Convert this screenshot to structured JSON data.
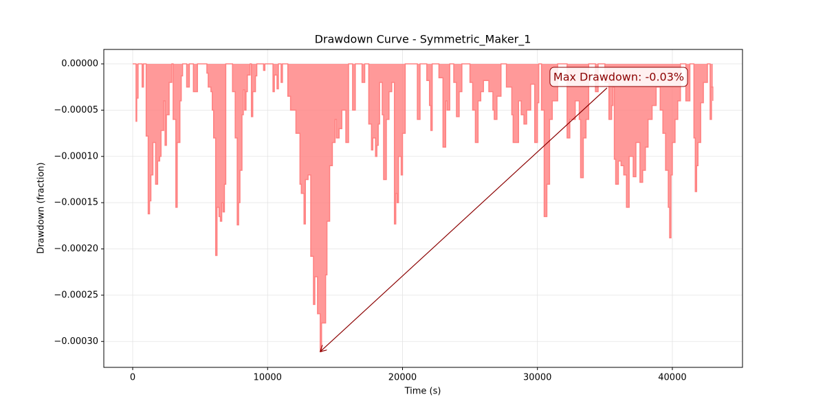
{
  "chart_data": {
    "type": "area",
    "drawstyle": "steps-post",
    "title": "Drawdown Curve - Symmetric_Maker_1",
    "xlabel": "Time (s)",
    "ylabel": "Drawdown (fraction)",
    "color": "#ff8080",
    "x": [
      0,
      250,
      300,
      400,
      700,
      800,
      1000,
      1150,
      1250,
      1350,
      1500,
      1700,
      1850,
      2000,
      2100,
      2300,
      2400,
      2500,
      2700,
      2900,
      3000,
      3200,
      3300,
      3500,
      3600,
      3700,
      4000,
      4200,
      4500,
      4800,
      5500,
      5600,
      5800,
      5900,
      6000,
      6150,
      6250,
      6400,
      6500,
      6600,
      6700,
      6800,
      6900,
      7400,
      7600,
      7750,
      7850,
      7950,
      8100,
      8200,
      8300,
      8400,
      8500,
      8700,
      8800,
      8900,
      9100,
      9200,
      9700,
      9800,
      10400,
      10500,
      10700,
      10800,
      11000,
      11100,
      11500,
      11700,
      12000,
      12100,
      12400,
      12500,
      12700,
      12800,
      13000,
      13200,
      13400,
      13500,
      13700,
      13900,
      14000,
      14200,
      14300,
      14400,
      14600,
      14800,
      15000,
      15100,
      15300,
      15500,
      15800,
      16000,
      16300,
      16500,
      17000,
      17200,
      17500,
      17700,
      17800,
      18000,
      18100,
      18200,
      18300,
      18500,
      18600,
      18800,
      19000,
      19200,
      19400,
      19500,
      19600,
      19700,
      19900,
      20000,
      20200,
      21100,
      21300,
      21800,
      22000,
      22100,
      22200,
      22700,
      23000,
      23200,
      23300,
      23500,
      23800,
      24000,
      24200,
      24400,
      25000,
      25200,
      25400,
      25600,
      25800,
      26000,
      26400,
      26700,
      26800,
      27000,
      27300,
      27700,
      28100,
      28200,
      28600,
      28800,
      29000,
      29200,
      29500,
      29800,
      30000,
      30100,
      30300,
      30500,
      30700,
      30900,
      31100,
      31500,
      32200,
      32400,
      32800,
      33100,
      33200,
      33400,
      33600,
      33800,
      34300,
      34500,
      35000,
      35300,
      35500,
      35600,
      35700,
      35800,
      36000,
      36200,
      36400,
      36600,
      36800,
      37100,
      37300,
      37600,
      37800,
      38000,
      38200,
      38500,
      38800,
      39100,
      39300,
      39500,
      39700,
      39800,
      39900,
      40000,
      40200,
      40400,
      40600,
      41000,
      41300,
      41600,
      41700,
      41800,
      41900,
      42100,
      42300,
      42600,
      42800,
      42900,
      43000
    ],
    "values": [
      0,
      -6.2e-05,
      -3.7e-05,
      0,
      -2.5e-05,
      0,
      -7.8e-05,
      -0.000162,
      -0.000148,
      -0.00012,
      -8.5e-05,
      -0.00013,
      -0.000105,
      -0.0001,
      -7.2e-05,
      -4e-05,
      -8.8e-05,
      -5.5e-05,
      -2e-05,
      0,
      -6e-05,
      -0.000155,
      -8.5e-05,
      -4e-05,
      -1.3e-05,
      0,
      -2.5e-05,
      0,
      -3e-05,
      0,
      -1e-05,
      -2.5e-05,
      -3e-05,
      -5e-05,
      -8e-05,
      -0.000207,
      -0.000155,
      -0.000165,
      -0.00017,
      -0.00015,
      -0.00016,
      -0.00013,
      0,
      -3e-05,
      -8e-05,
      -0.000174,
      -0.00015,
      -0.000115,
      -5.5e-05,
      -2.8e-05,
      -5e-05,
      -3e-05,
      -1.2e-05,
      0,
      -5.7e-05,
      -3e-05,
      -1.3e-05,
      0,
      -7e-06,
      0,
      -3e-05,
      -1.2e-05,
      -2.7e-05,
      0,
      -2e-05,
      0,
      -3.5e-05,
      -5e-05,
      -5e-05,
      -7.5e-05,
      -0.00013,
      -0.00014,
      -0.000173,
      -0.000125,
      -0.00012,
      -0.000208,
      -0.00026,
      -0.00023,
      -0.00027,
      -0.000311,
      -0.00028,
      -0.00028,
      -0.000228,
      -0.00017,
      -0.00011,
      -8.5e-05,
      -6e-05,
      -8e-05,
      -7e-05,
      -5e-05,
      -8.5e-05,
      0,
      -5e-05,
      0,
      -2e-05,
      0,
      -6.5e-05,
      -9.3e-05,
      -8e-05,
      -0.0001,
      -8.8e-05,
      -6.5e-05,
      -2e-05,
      -5.5e-05,
      -0.000125,
      -6e-05,
      -3e-05,
      -2e-05,
      -0.000173,
      -0.00014,
      -0.00015,
      -0.0001,
      -0.00012,
      -7.5e-05,
      0,
      -6e-05,
      0,
      -1.8e-05,
      -4.5e-05,
      -7.2e-05,
      0,
      -1.5e-05,
      -9e-05,
      -4e-05,
      -5e-05,
      0,
      -2e-05,
      -5.7e-05,
      -3e-05,
      0,
      -2e-05,
      -5e-05,
      -8.5e-05,
      -4e-05,
      -3e-05,
      -1.8e-05,
      -3e-05,
      -5e-05,
      -6e-05,
      -3.5e-05,
      0,
      -2.5e-05,
      -5.5e-05,
      -8.5e-05,
      -4e-05,
      -5.5e-05,
      -6.5e-05,
      -5e-05,
      -2.2e-05,
      -8.5e-05,
      -4.2e-05,
      0,
      -5e-05,
      -0.000165,
      -0.00013,
      -6e-05,
      -4e-05,
      0,
      -8e-05,
      -6e-05,
      -4e-05,
      -6e-05,
      -0.000123,
      -8e-05,
      -6e-05,
      0,
      -3e-05,
      0,
      -2e-05,
      -6e-05,
      -4.5e-05,
      -2.5e-05,
      -0.000103,
      -0.00013,
      -0.000105,
      -0.00011,
      -0.00012,
      -0.000155,
      -0.0001,
      -0.000122,
      -8.5e-05,
      -0.000128,
      -0.000115,
      -9e-05,
      -6e-05,
      -4.5e-05,
      -2.5e-05,
      -5e-05,
      -7.5e-05,
      -0.000115,
      -0.000155,
      -0.000188,
      -0.00012,
      -8.5e-05,
      -6e-05,
      -4e-05,
      0,
      -4e-05,
      0,
      -8e-05,
      -0.000138,
      -0.00011,
      -8.5e-05,
      -4.2e-05,
      -2e-05,
      0,
      -6e-05,
      -2.5e-05,
      -4e-05
    ],
    "xlim": [
      -2140,
      45200
    ],
    "xticks": [
      0,
      10000,
      20000,
      30000,
      40000
    ],
    "ylim": [
      -0.000328,
      1.56e-05
    ],
    "yticks": [
      {
        "value": 0,
        "label": "0.00000"
      },
      {
        "value": -5e-05,
        "label": "−0.00005"
      },
      {
        "value": -0.0001,
        "label": "−0.00010"
      },
      {
        "value": -0.00015,
        "label": "−0.00015"
      },
      {
        "value": -0.0002,
        "label": "−0.00020"
      },
      {
        "value": -0.00025,
        "label": "−0.00025"
      },
      {
        "value": -0.0003,
        "label": "−0.00030"
      }
    ],
    "grid": true,
    "annotation": {
      "text": "Max Drawdown: -0.03%",
      "x": 13900,
      "y": -0.000311
    }
  }
}
